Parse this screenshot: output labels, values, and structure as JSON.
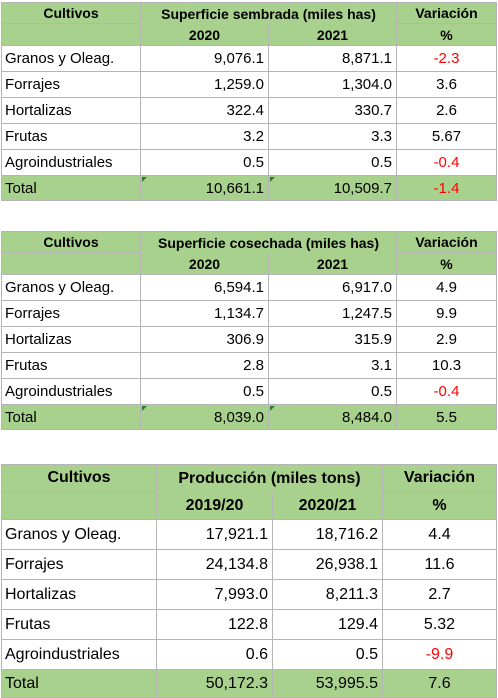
{
  "tables": [
    {
      "header": {
        "col1": "Cultivos",
        "metric": "Superficie sembrada (miles has)",
        "variation": "Variación",
        "year_a": "2020",
        "year_b": "2021",
        "unit": "%"
      },
      "rows": [
        {
          "label": "Granos y Oleag.",
          "a": "9,076.1",
          "b": "8,871.1",
          "var": "-2.3"
        },
        {
          "label": "Forrajes",
          "a": "1,259.0",
          "b": "1,304.0",
          "var": "3.6"
        },
        {
          "label": "Hortalizas",
          "a": "322.4",
          "b": "330.7",
          "var": "2.6"
        },
        {
          "label": "Frutas",
          "a": "3.2",
          "b": "3.3",
          "var": "5.67"
        },
        {
          "label": "Agroindustriales",
          "a": "0.5",
          "b": "0.5",
          "var": "-0.4"
        }
      ],
      "total": {
        "label": "Total",
        "a": "10,661.1",
        "b": "10,509.7",
        "var": "-1.4"
      }
    },
    {
      "header": {
        "col1": "Cultivos",
        "metric": "Superficie cosechada (miles has)",
        "variation": "Variación",
        "year_a": "2020",
        "year_b": "2021",
        "unit": "%"
      },
      "rows": [
        {
          "label": "Granos y Oleag.",
          "a": "6,594.1",
          "b": "6,917.0",
          "var": "4.9"
        },
        {
          "label": "Forrajes",
          "a": "1,134.7",
          "b": "1,247.5",
          "var": "9.9"
        },
        {
          "label": "Hortalizas",
          "a": "306.9",
          "b": "315.9",
          "var": "2.9"
        },
        {
          "label": "Frutas",
          "a": "2.8",
          "b": "3.1",
          "var": "10.3"
        },
        {
          "label": "Agroindustriales",
          "a": "0.5",
          "b": "0.5",
          "var": "-0.4"
        }
      ],
      "total": {
        "label": "Total",
        "a": "8,039.0",
        "b": "8,484.0",
        "var": "5.5"
      }
    },
    {
      "header": {
        "col1": "Cultivos",
        "metric": "Producción (miles tons)",
        "variation": "Variación",
        "year_a": "2019/20",
        "year_b": "2020/21",
        "unit": "%"
      },
      "rows": [
        {
          "label": "Granos y Oleag.",
          "a": "17,921.1",
          "b": "18,716.2",
          "var": "4.4"
        },
        {
          "label": "Forrajes",
          "a": "24,134.8",
          "b": "26,938.1",
          "var": "11.6"
        },
        {
          "label": "Hortalizas",
          "a": "7,993.0",
          "b": "8,211.3",
          "var": "2.7"
        },
        {
          "label": "Frutas",
          "a": "122.8",
          "b": "129.4",
          "var": "5.32"
        },
        {
          "label": "Agroindustriales",
          "a": "0.6",
          "b": "0.5",
          "var": "-9.9"
        }
      ],
      "total": {
        "label": "Total",
        "a": "50,172.3",
        "b": "53,995.5",
        "var": "7.6"
      }
    }
  ],
  "colors": {
    "header_bg": "#a9d18e",
    "negative": "#ff0000",
    "grid": "#b5b5b5"
  }
}
